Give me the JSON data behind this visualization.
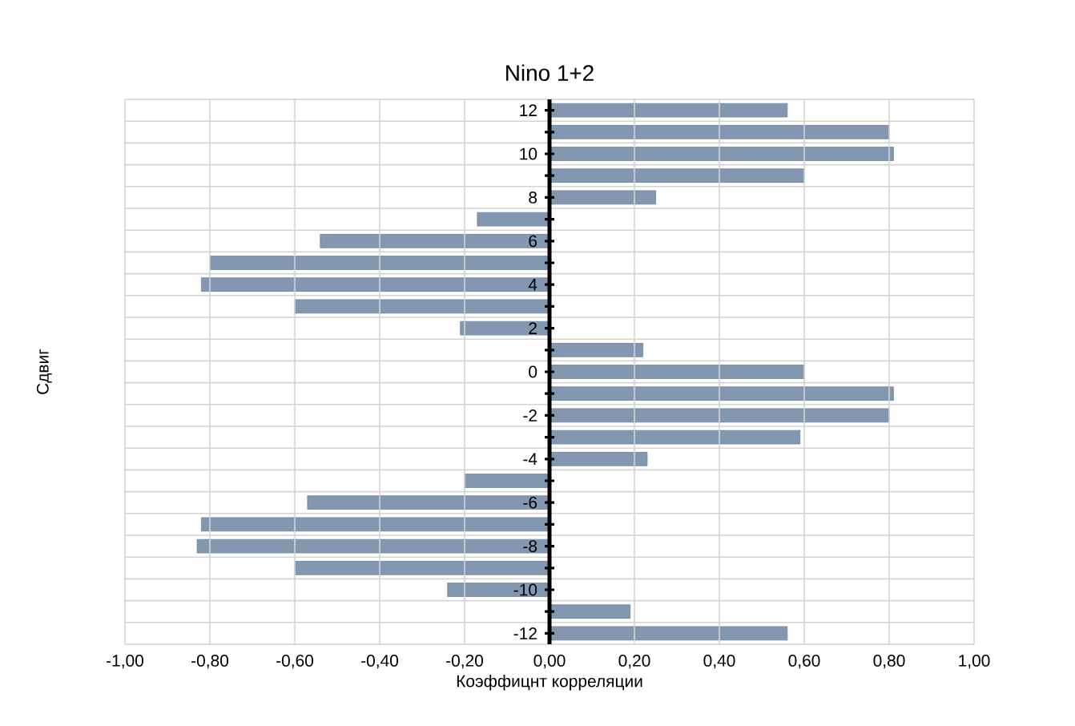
{
  "chart_data": {
    "type": "bar",
    "orientation": "horizontal",
    "title": "Nino 1+2",
    "xlabel": "Коэффицнт корреляции",
    "ylabel": "Сдвиг",
    "categories": [
      "12",
      null,
      "10",
      null,
      "8",
      null,
      "6",
      null,
      "4",
      null,
      "2",
      null,
      "0",
      null,
      "-2",
      null,
      "-4",
      null,
      "-6",
      null,
      "-8",
      null,
      "-10",
      null,
      "-12"
    ],
    "values": [
      0.56,
      0.8,
      0.81,
      0.6,
      0.25,
      -0.17,
      -0.54,
      -0.8,
      -0.82,
      -0.6,
      -0.21,
      0.22,
      0.6,
      0.81,
      0.8,
      0.59,
      0.23,
      -0.2,
      -0.57,
      -0.82,
      -0.83,
      -0.6,
      -0.24,
      0.19,
      0.56
    ],
    "color": "#8497b0",
    "xlim": [
      -1,
      1
    ],
    "xticks": [
      {
        "value": -1,
        "label": "-1,00"
      },
      {
        "value": -0.8,
        "label": "-0,80"
      },
      {
        "value": -0.6,
        "label": "-0,60"
      },
      {
        "value": -0.4,
        "label": "-0,40"
      },
      {
        "value": -0.2,
        "label": "-0,20"
      },
      {
        "value": 0,
        "label": "0,00"
      },
      {
        "value": 0.2,
        "label": "0,20"
      },
      {
        "value": 0.4,
        "label": "0,40"
      },
      {
        "value": 0.6,
        "label": "0,60"
      },
      {
        "value": 0.8,
        "label": "0,80"
      },
      {
        "value": 1,
        "label": "1,00"
      }
    ],
    "grid": true
  }
}
